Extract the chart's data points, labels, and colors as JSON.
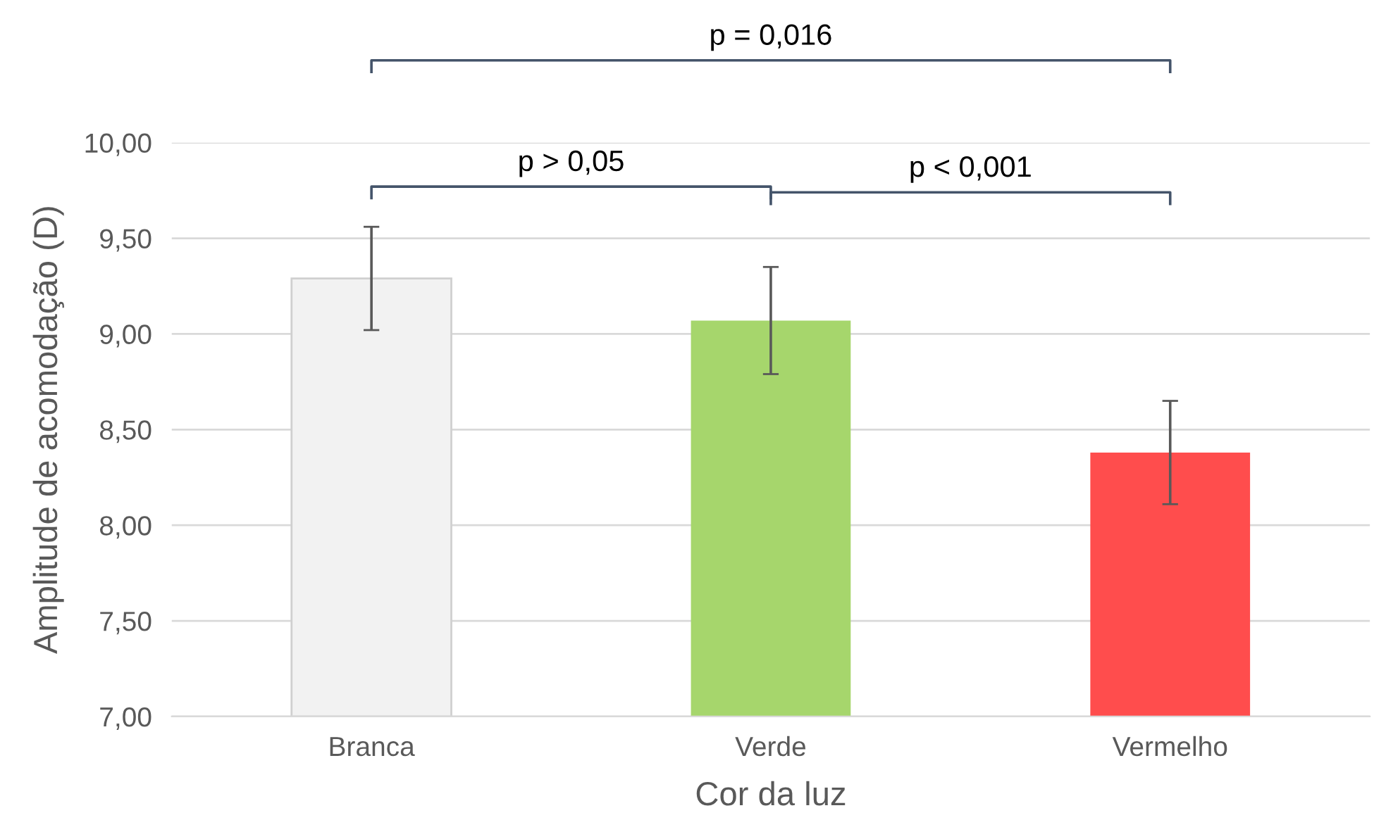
{
  "chart_data": {
    "type": "bar",
    "xlabel": "Cor da luz",
    "ylabel": "Amplitude de acomodação (D)",
    "categories": [
      "Branca",
      "Verde",
      "Vermelho"
    ],
    "values": [
      9.29,
      9.07,
      8.38
    ],
    "errors": [
      0.27,
      0.28,
      0.27
    ],
    "colors": [
      "#f2f2f2",
      "#a6d66c",
      "#ff4d4d"
    ],
    "ylim": [
      7,
      10
    ],
    "yticks": [
      {
        "value": 7,
        "label": "7,00"
      },
      {
        "value": 7.5,
        "label": "7,50"
      },
      {
        "value": 8,
        "label": "8,00"
      },
      {
        "value": 8.5,
        "label": "8,50"
      },
      {
        "value": 9,
        "label": "9,00"
      },
      {
        "value": 9.5,
        "label": "9,50"
      },
      {
        "value": 10,
        "label": "10,00"
      }
    ],
    "grid": "y",
    "annotations": [
      "p > 0,05",
      "p < 0,001",
      "p = 0,016"
    ]
  }
}
